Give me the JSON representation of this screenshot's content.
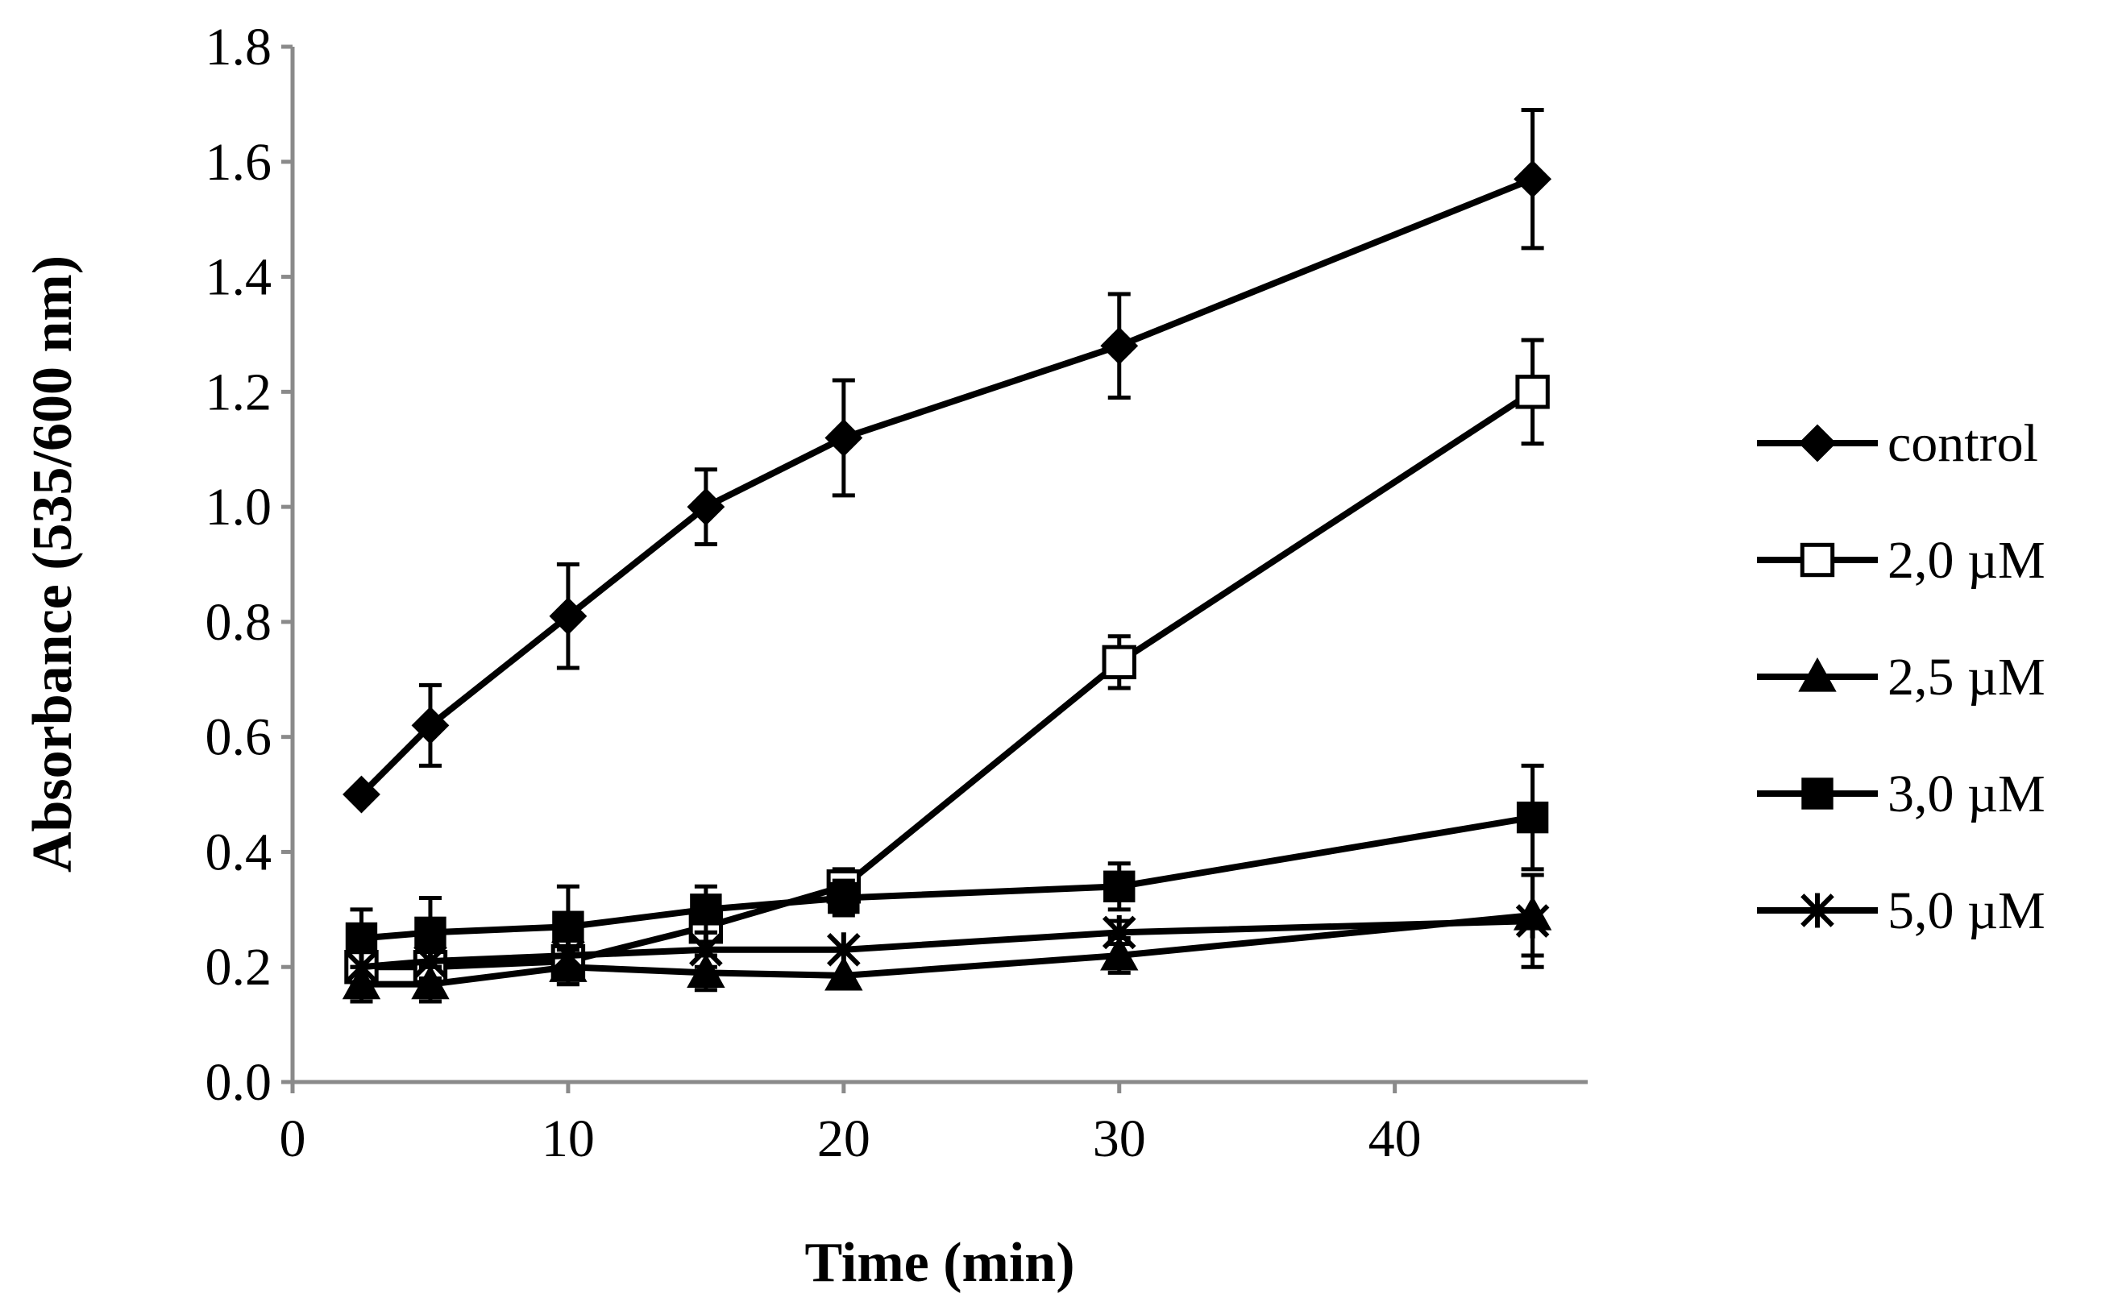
{
  "chart_data": {
    "type": "line",
    "title": "",
    "xlabel": "Time (min)",
    "ylabel": "Absorbance (535/600 nm)",
    "xlim": [
      0,
      47
    ],
    "ylim": [
      0,
      1.8
    ],
    "x_ticks": [
      0,
      10,
      20,
      30,
      40
    ],
    "x_tick_labels": [
      "0",
      "10",
      "20",
      "30",
      "40"
    ],
    "y_ticks": [
      0,
      0.2,
      0.4,
      0.6,
      0.8,
      1.0,
      1.2,
      1.4,
      1.6,
      1.8
    ],
    "y_tick_labels": [
      "0.0",
      "0.2",
      "0.4",
      "0.6",
      "0.8",
      "1.0",
      "1.2",
      "1.4",
      "1.6",
      "1.8"
    ],
    "grid": false,
    "legend_position": "right",
    "x": [
      2.5,
      5,
      10,
      15,
      20,
      30,
      45
    ],
    "series": [
      {
        "name": "control",
        "marker": "diamond",
        "values": [
          0.5,
          0.62,
          0.81,
          1.0,
          1.12,
          1.28,
          1.57
        ],
        "errors": [
          0.0,
          0.07,
          0.09,
          0.065,
          0.1,
          0.09,
          0.12
        ]
      },
      {
        "name": "2,0 µM",
        "marker": "open-square",
        "values": [
          0.2,
          0.2,
          0.21,
          0.27,
          0.34,
          0.73,
          1.2
        ],
        "errors": [
          0.03,
          0.03,
          0.04,
          0.04,
          0.03,
          0.045,
          0.09
        ]
      },
      {
        "name": "2,5 µM",
        "marker": "triangle",
        "values": [
          0.17,
          0.17,
          0.2,
          0.19,
          0.185,
          0.22,
          0.29
        ],
        "errors": [
          0.03,
          0.03,
          0.03,
          0.03,
          0.0,
          0.03,
          0.07
        ]
      },
      {
        "name": "3,0 µM",
        "marker": "filled-square",
        "values": [
          0.25,
          0.26,
          0.27,
          0.3,
          0.32,
          0.34,
          0.46
        ],
        "errors": [
          0.05,
          0.06,
          0.07,
          0.04,
          0.03,
          0.04,
          0.09
        ]
      },
      {
        "name": "5,0 µM",
        "marker": "star",
        "values": [
          0.2,
          0.21,
          0.22,
          0.23,
          0.23,
          0.26,
          0.28
        ],
        "errors": [
          0.04,
          0.03,
          0.03,
          0.03,
          0.0,
          0.02,
          0.08
        ]
      }
    ]
  }
}
